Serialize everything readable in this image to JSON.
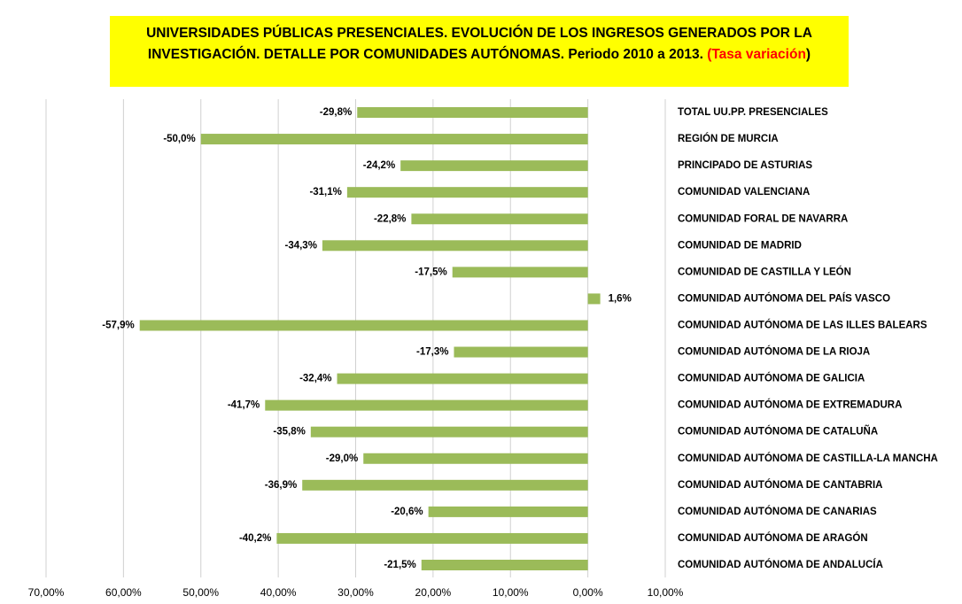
{
  "chart_data": {
    "type": "bar",
    "orientation": "horizontal",
    "title": "UNIVERSIDADES PÚBLICAS PRESENCIALES. EVOLUCIÓN DE LOS INGRESOS GENERADOS POR LA INVESTIGACIÓN. DETALLE POR COMUNIDADES AUTÓNOMAS. Periodo 2010 a 2013.",
    "title_highlight": "(Tasa variación",
    "title_close": ")",
    "categories": [
      "TOTAL UU.PP. PRESENCIALES",
      "REGIÓN DE MURCIA",
      "PRINCIPADO DE ASTURIAS",
      "COMUNIDAD VALENCIANA",
      "COMUNIDAD FORAL DE NAVARRA",
      "COMUNIDAD DE MADRID",
      "COMUNIDAD DE CASTILLA Y LEÓN",
      "COMUNIDAD AUTÓNOMA DEL PAÍS VASCO",
      "COMUNIDAD AUTÓNOMA DE LAS ILLES BALEARS",
      "COMUNIDAD AUTÓNOMA DE LA RIOJA",
      "COMUNIDAD AUTÓNOMA DE GALICIA",
      "COMUNIDAD AUTÓNOMA DE EXTREMADURA",
      "COMUNIDAD AUTÓNOMA DE CATALUÑA",
      "COMUNIDAD AUTÓNOMA DE CASTILLA-LA MANCHA",
      "COMUNIDAD AUTÓNOMA DE CANTABRIA",
      "COMUNIDAD AUTÓNOMA DE CANARIAS",
      "COMUNIDAD AUTÓNOMA DE ARAGÓN",
      "COMUNIDAD AUTÓNOMA DE ANDALUCÍA"
    ],
    "values": [
      -29.8,
      -50.0,
      -24.2,
      -31.1,
      -22.8,
      -34.3,
      -17.5,
      1.6,
      -57.9,
      -17.3,
      -32.4,
      -41.7,
      -35.8,
      -29.0,
      -36.9,
      -20.6,
      -40.2,
      -21.5
    ],
    "value_labels": [
      "-29,8%",
      "-50,0%",
      "-24,2%",
      "-31,1%",
      "-22,8%",
      "-34,3%",
      "-17,5%",
      "1,6%",
      "-57,9%",
      "-17,3%",
      "-32,4%",
      "-41,7%",
      "-35,8%",
      "-29,0%",
      "-36,9%",
      "-20,6%",
      "-40,2%",
      "-21,5%"
    ],
    "color": "#9bbb59",
    "xlim": [
      -70,
      10
    ],
    "xticks": [
      {
        "value": -70,
        "label": "70,00%"
      },
      {
        "value": -60,
        "label": "60,00%"
      },
      {
        "value": -50,
        "label": "50,00%"
      },
      {
        "value": -40,
        "label": "40,00%"
      },
      {
        "value": -30,
        "label": "30,00%"
      },
      {
        "value": -20,
        "label": "20,00%"
      },
      {
        "value": -10,
        "label": "10,00%"
      },
      {
        "value": 0,
        "label": "0,00%"
      },
      {
        "value": 10,
        "label": "10,00%"
      }
    ],
    "grid": true
  }
}
